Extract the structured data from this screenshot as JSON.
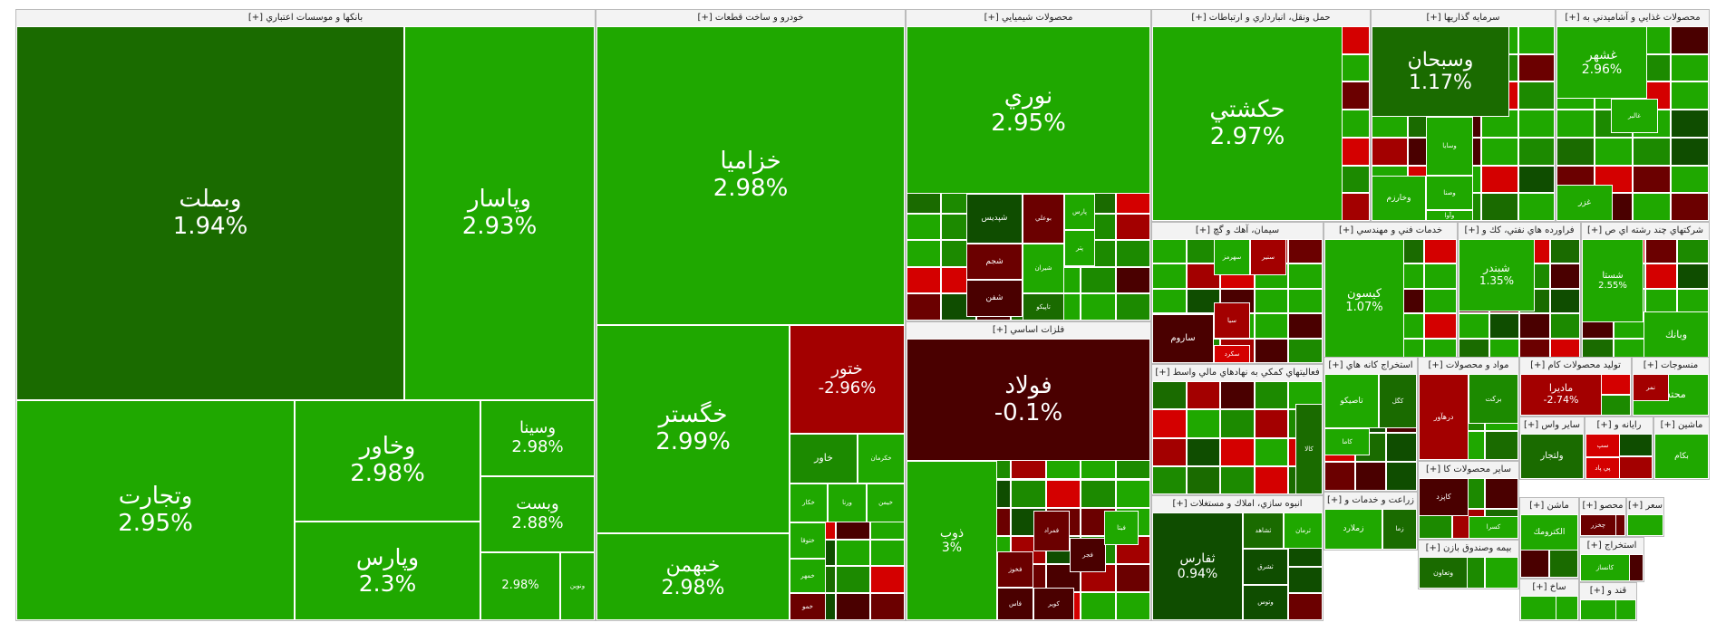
{
  "colors": {
    "g1": "#1fa800",
    "g2": "#1c8a00",
    "g3": "#1a6b00",
    "g4": "#0f4d00",
    "r1": "#d40000",
    "r2": "#a30000",
    "r3": "#6b0000",
    "r4": "#4a0000"
  },
  "sectors": [
    {
      "title": "بانکها و موسسات اعتباري [+]",
      "tiles": [
        {
          "n": "وبملت",
          "p": "1.94%",
          "c": "g3"
        },
        {
          "n": "وپاسار",
          "p": "2.93%",
          "c": "g1"
        },
        {
          "n": "وتجارت",
          "p": "2.95%",
          "c": "g1"
        },
        {
          "n": "وخاور",
          "p": "2.98%",
          "c": "g1"
        },
        {
          "n": "وپارس",
          "p": "2.3%",
          "c": "g1"
        },
        {
          "n": "وسينا",
          "p": "2.98%",
          "c": "g1"
        },
        {
          "n": "وبست",
          "p": "2.88%",
          "c": "g1"
        },
        {
          "n": "ونوين",
          "p": "",
          "c": "g1"
        },
        {
          "n": "",
          "p": "2.98%",
          "c": "g1"
        }
      ]
    },
    {
      "title": "خودرو و ساخت قطعات [+]",
      "tiles": [
        {
          "n": "خزاميا",
          "p": "2.98%",
          "c": "g1"
        },
        {
          "n": "خگستر",
          "p": "2.99%",
          "c": "g1"
        },
        {
          "n": "خبهمن",
          "p": "2.98%",
          "c": "g1"
        },
        {
          "n": "ختور",
          "p": "-2.96%",
          "c": "r2"
        },
        {
          "n": "خاور",
          "p": "",
          "c": "g2"
        },
        {
          "n": "خكرمان",
          "p": "",
          "c": "g1"
        },
        {
          "n": "خكار",
          "p": "",
          "c": "g1"
        },
        {
          "n": "ورنا",
          "p": "",
          "c": "g1"
        },
        {
          "n": "خيمن",
          "p": "",
          "c": "g1"
        },
        {
          "n": "ختوقا",
          "p": "",
          "c": "g1"
        },
        {
          "n": "خمهر",
          "p": "",
          "c": "g1"
        },
        {
          "n": "خمو",
          "p": "",
          "c": "r3"
        }
      ]
    },
    {
      "title": "محصولات شيميايي [+]",
      "tiles": [
        {
          "n": "نوري",
          "p": "2.95%",
          "c": "g1"
        },
        {
          "n": "شپديس",
          "p": "",
          "c": "g4"
        },
        {
          "n": "بوعلي",
          "p": "",
          "c": "r3"
        },
        {
          "n": "پارس",
          "p": "",
          "c": "g1"
        },
        {
          "n": "شجم",
          "p": "",
          "c": "r3"
        },
        {
          "n": "شيران",
          "p": "",
          "c": "g1"
        },
        {
          "n": "شفن",
          "p": "",
          "c": "r4"
        },
        {
          "n": "تاپيكو",
          "p": "",
          "c": "g3"
        },
        {
          "n": "پتر",
          "p": "",
          "c": "g1"
        }
      ]
    },
    {
      "title": "فلزات اساسي [+]",
      "tiles": [
        {
          "n": "فولاد",
          "p": "-0.1%",
          "c": "r4"
        },
        {
          "n": "ذوب",
          "p": "3%",
          "c": "g1"
        },
        {
          "n": "فمراد",
          "p": "",
          "c": "r3"
        },
        {
          "n": "فخوز",
          "p": "",
          "c": "r3"
        },
        {
          "n": "فجر",
          "p": "",
          "c": "r4"
        },
        {
          "n": "فيتا",
          "p": "",
          "c": "g1"
        },
        {
          "n": "كوير",
          "p": "",
          "c": "r4"
        },
        {
          "n": "فاس",
          "p": "",
          "c": "r4"
        }
      ]
    },
    {
      "title": "حمل ونقل، انبارداري و ارتباطات [+]",
      "tiles": [
        {
          "n": "حكشتي",
          "p": "2.97%",
          "c": "g1"
        }
      ]
    },
    {
      "title": "سرمايه گذاريها [+]",
      "tiles": [
        {
          "n": "وسبحان",
          "p": "1.17%",
          "c": "g3"
        },
        {
          "n": "وسايا",
          "p": "",
          "c": "g1"
        },
        {
          "n": "وصنا",
          "p": "",
          "c": "g1"
        },
        {
          "n": "وخارزم",
          "p": "",
          "c": "g1"
        },
        {
          "n": "وآوا",
          "p": "",
          "c": "g1"
        }
      ]
    },
    {
      "title": "محصولات غذايي و آشاميدني به [+]",
      "tiles": [
        {
          "n": "غشهر",
          "p": "2.96%",
          "c": "g1"
        },
        {
          "n": "غالبر",
          "p": "",
          "c": "g1"
        },
        {
          "n": "غزر",
          "p": "",
          "c": "g1"
        }
      ]
    },
    {
      "title": "سيمان، آهك و گچ [+]",
      "tiles": [
        {
          "n": "سهرمز",
          "p": "",
          "c": "g1"
        },
        {
          "n": "سنير",
          "p": "",
          "c": "r2"
        },
        {
          "n": "ساروم",
          "p": "",
          "c": "r4"
        },
        {
          "n": "سكرد",
          "p": "",
          "c": "r1"
        },
        {
          "n": "سيا",
          "p": "",
          "c": "r2"
        }
      ]
    },
    {
      "title": "خدمات فني و مهندسي [+]",
      "tiles": [
        {
          "n": "كيسون",
          "p": "1.07%",
          "c": "g1"
        }
      ]
    },
    {
      "title": "فراورده هاي نفتي، كك و [+]",
      "tiles": [
        {
          "n": "شبندر",
          "p": "1.35%",
          "c": "g1"
        }
      ]
    },
    {
      "title": "شركتهاي چند رشته اي ص [+]",
      "tiles": [
        {
          "n": "شستا",
          "p": "2.55%",
          "c": "g1"
        },
        {
          "n": "وبانك",
          "p": "",
          "c": "g1"
        }
      ]
    },
    {
      "title": "فعاليتهاي كمكي به نهادهاي مالي واسط [+]",
      "tiles": [
        {
          "n": "كالا",
          "p": "",
          "c": "g3"
        }
      ]
    },
    {
      "title": "انبوه سازي، املاك و مستغلات [+]",
      "tiles": [
        {
          "n": "ثفارس",
          "p": "0.94%",
          "c": "g4"
        },
        {
          "n": "ثشاهد",
          "p": "",
          "c": "g3"
        },
        {
          "n": "ثرمان",
          "p": "",
          "c": "g1"
        },
        {
          "n": "ثشرق",
          "p": "",
          "c": "g4"
        },
        {
          "n": "وتوس",
          "p": "",
          "c": "g4"
        }
      ]
    },
    {
      "title": "استخراج كانه هاي [+]",
      "tiles": [
        {
          "n": "تاصيكو",
          "p": "",
          "c": "g1"
        },
        {
          "n": "كگل",
          "p": "",
          "c": "g3"
        },
        {
          "n": "كاما",
          "p": "",
          "c": "g1"
        }
      ]
    },
    {
      "title": "مواد و محصولات [+]",
      "tiles": [
        {
          "n": "درهآور",
          "p": "",
          "c": "r2"
        },
        {
          "n": "بركت",
          "p": "",
          "c": "g2"
        }
      ]
    },
    {
      "title": "توليد محصولات كام [+]",
      "tiles": [
        {
          "n": "ماديرا",
          "p": "-2.74%",
          "c": "r2"
        }
      ]
    },
    {
      "title": "منسوجات [+]",
      "tiles": [
        {
          "n": "محتشم",
          "p": "",
          "c": "g1"
        },
        {
          "n": "نمر",
          "p": "",
          "c": "r2"
        }
      ]
    },
    {
      "title": "ساير محصولات كا [+]",
      "tiles": [
        {
          "n": "كاپزد",
          "p": "",
          "c": "r4"
        },
        {
          "n": "كسرا",
          "p": "",
          "c": "g1"
        }
      ]
    },
    {
      "title": "زراعت و خدمات و [+]",
      "tiles": [
        {
          "n": "زملارد",
          "p": "",
          "c": "g1"
        },
        {
          "n": "زما",
          "p": "",
          "c": "g3"
        }
      ]
    },
    {
      "title": "بيمه وصندوق بازن [+]",
      "tiles": [
        {
          "n": "وتعاون",
          "p": "",
          "c": "g3"
        }
      ]
    },
    {
      "title": "ساير واس [+]",
      "tiles": [
        {
          "n": "ولتجار",
          "p": "",
          "c": "g3"
        }
      ]
    },
    {
      "title": "رايانه و [+]",
      "tiles": [
        {
          "n": "سپ",
          "p": "",
          "c": "r1"
        },
        {
          "n": "پي پاد",
          "p": "",
          "c": "r1"
        }
      ]
    },
    {
      "title": "ماشين [+]",
      "tiles": [
        {
          "n": "بكام",
          "p": "",
          "c": "g1"
        }
      ]
    },
    {
      "title": "ماشن [+]",
      "tiles": [
        {
          "n": "الكترومك",
          "p": "",
          "c": "g1"
        }
      ]
    },
    {
      "title": "محصو [+]",
      "tiles": [
        {
          "n": "چخزر",
          "p": "",
          "c": "r3"
        }
      ]
    },
    {
      "title": "استخراج [+]",
      "tiles": [
        {
          "n": "كانساز",
          "p": "",
          "c": "g1"
        }
      ]
    },
    {
      "title": "ساخ [+]",
      "tiles": [
        {
          "n": "",
          "p": "",
          "c": "g1"
        }
      ]
    },
    {
      "title": "قند و [+]",
      "tiles": [
        {
          "n": "",
          "p": "",
          "c": "g1"
        }
      ]
    },
    {
      "title": "سعر [+]",
      "tiles": [
        {
          "n": "",
          "p": "",
          "c": "g1"
        }
      ]
    }
  ]
}
